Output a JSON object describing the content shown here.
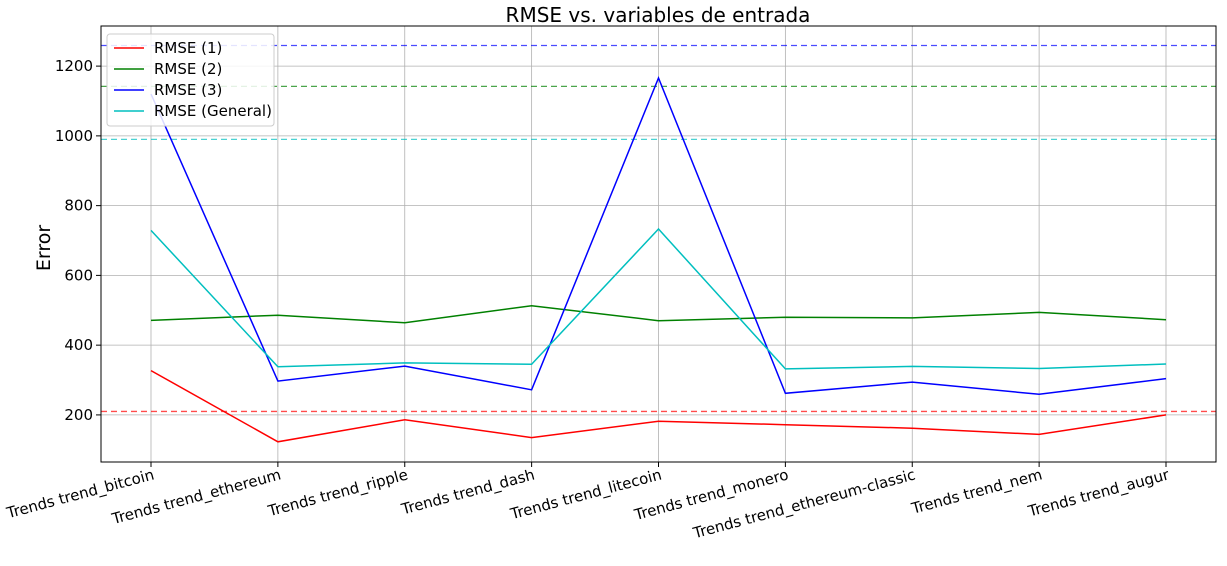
{
  "chart_data": {
    "type": "line",
    "title": "RMSE vs. variables de entrada",
    "xlabel": "",
    "ylabel": "Error",
    "categories": [
      "Trends trend_bitcoin",
      "Trends trend_ethereum",
      "Trends trend_ripple",
      "Trends trend_dash",
      "Trends trend_litecoin",
      "Trends trend_monero",
      "Trends trend_ethereum-classic",
      "Trends trend_nem",
      "Trends trend_augur"
    ],
    "series": [
      {
        "name": "RMSE (1)",
        "color": "#ff0000",
        "values": [
          327,
          123,
          186,
          135,
          182,
          172,
          162,
          144,
          200
        ]
      },
      {
        "name": "RMSE (2)",
        "color": "#008000",
        "values": [
          471,
          486,
          464,
          513,
          470,
          480,
          478,
          494,
          473
        ]
      },
      {
        "name": "RMSE (3)",
        "color": "#0000ff",
        "values": [
          1120,
          297,
          340,
          272,
          1166,
          262,
          294,
          259,
          304
        ]
      },
      {
        "name": "RMSE (General)",
        "color": "#00bfbf",
        "values": [
          729,
          338,
          349,
          345,
          733,
          332,
          339,
          333,
          346
        ]
      }
    ],
    "reference_lines": [
      {
        "color": "#ff0000",
        "value": 210
      },
      {
        "color": "#008000",
        "value": 1142
      },
      {
        "color": "#0000ff",
        "value": 1259
      },
      {
        "color": "#00bfbf",
        "value": 990
      }
    ],
    "yticks": [
      200,
      400,
      600,
      800,
      1000,
      1200
    ],
    "ylim": [
      65,
      1315
    ],
    "grid": true,
    "legend_position": "top-left"
  }
}
